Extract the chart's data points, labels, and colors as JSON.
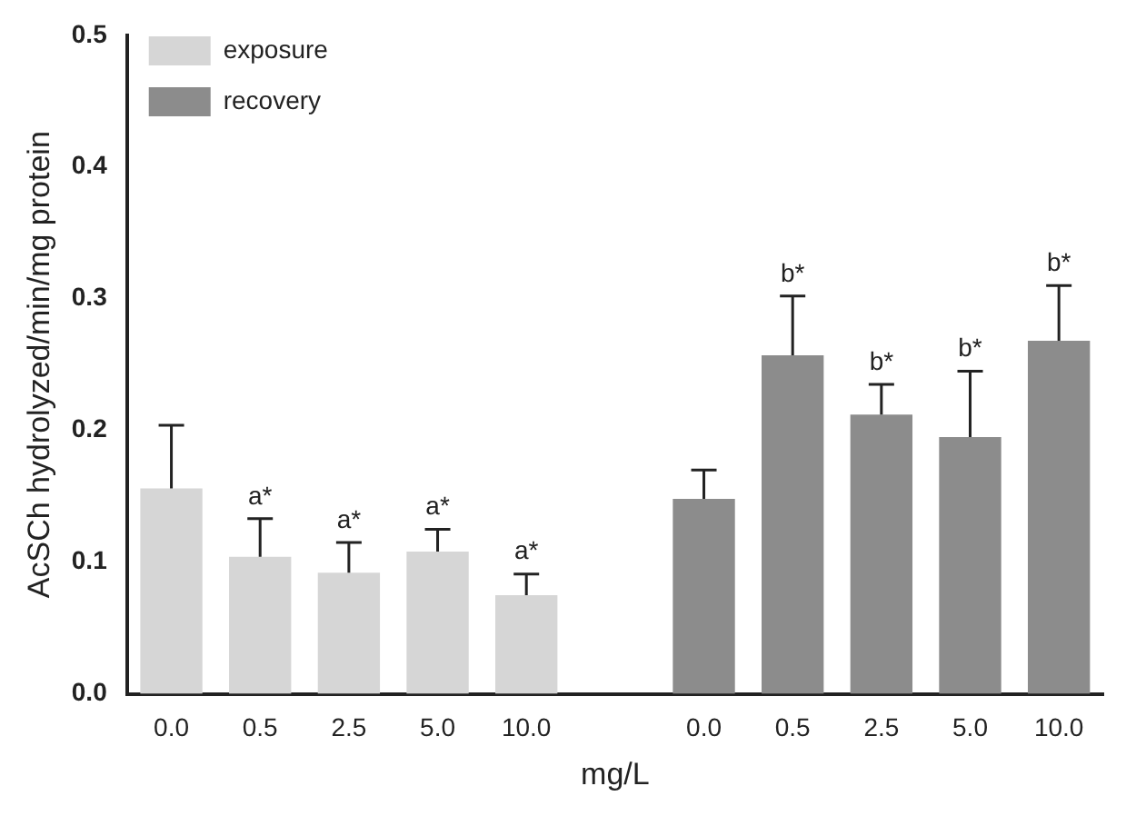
{
  "chart_data": {
    "type": "bar",
    "xlabel": "mg/L",
    "ylabel": "AcSCh hydrolyzed/min/mg protein",
    "categories": [
      "0.0",
      "0.5",
      "2.5",
      "5.0",
      "10.0",
      null,
      "0.0",
      "0.5",
      "2.5",
      "5.0",
      "10.0"
    ],
    "series": [
      {
        "name": "exposure",
        "color": "#d6d6d6",
        "values": [
          0.156,
          0.104,
          0.092,
          0.108,
          0.075,
          null,
          null,
          null,
          null,
          null,
          null
        ],
        "errors": [
          [
            0.156,
            0.204
          ],
          [
            0.104,
            0.133
          ],
          [
            0.092,
            0.115
          ],
          [
            0.108,
            0.125
          ],
          [
            0.075,
            0.091
          ],
          null,
          null,
          null,
          null,
          null,
          null
        ],
        "value_labels": [
          null,
          "a*",
          "a*",
          "a*",
          "a*",
          null,
          null,
          null,
          null,
          null,
          null
        ]
      },
      {
        "name": "recovery",
        "color": "#8c8c8c",
        "values": [
          null,
          null,
          null,
          null,
          null,
          null,
          0.148,
          0.257,
          0.212,
          0.195,
          0.268
        ],
        "errors": [
          null,
          null,
          null,
          null,
          null,
          null,
          [
            0.148,
            0.17
          ],
          [
            0.257,
            0.302
          ],
          [
            0.212,
            0.235
          ],
          [
            0.195,
            0.245
          ],
          [
            0.268,
            0.31
          ]
        ],
        "value_labels": [
          null,
          null,
          null,
          null,
          null,
          null,
          null,
          "b*",
          "b*",
          "b*",
          "b*"
        ]
      }
    ],
    "ylim": [
      0,
      0.5
    ],
    "yticks": [
      {
        "value": 0,
        "label": "0.0"
      },
      {
        "value": 0.1,
        "label": "0.1"
      },
      {
        "value": 0.2,
        "label": "0.2"
      },
      {
        "value": 0.3,
        "label": "0.3"
      },
      {
        "value": 0.4,
        "label": "0.4"
      },
      {
        "value": 0.5,
        "label": "0.5"
      }
    ],
    "grid": false,
    "legend": "top left"
  }
}
